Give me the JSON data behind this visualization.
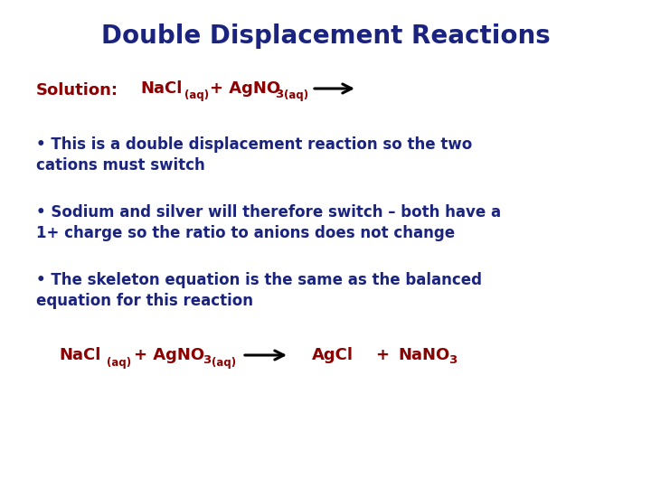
{
  "title": "Double Displacement Reactions",
  "title_color": "#1a237e",
  "title_fontsize": 20,
  "background_color": "#ffffff",
  "red_color": "#8b0000",
  "blue_color": "#1a237e",
  "bullet1_line1": "• This is a double displacement reaction so the two",
  "bullet1_line2": "cations must switch",
  "bullet2_line1": "• Sodium and silver will therefore switch – both have a",
  "bullet2_line2": "1+ charge so the ratio to anions does not change",
  "bullet3_line1": "• The skeleton equation is the same as the balanced",
  "bullet3_line2": "equation for this reaction",
  "sol_fontsize": 13,
  "bullet_fontsize": 12,
  "eq_fontsize": 13,
  "sub_fontsize": 8.5
}
